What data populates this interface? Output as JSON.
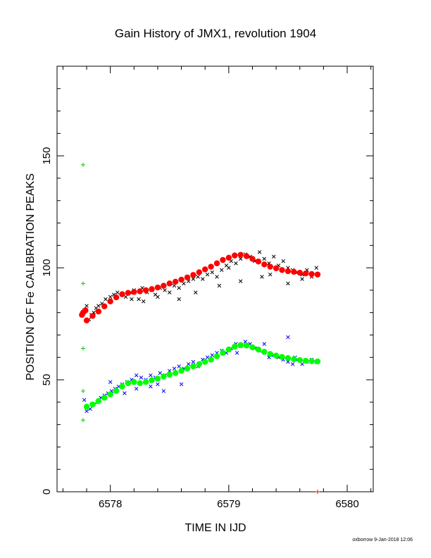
{
  "chart_data": {
    "type": "scatter",
    "title": "Gain History of JMX1, revolution 1904",
    "xlabel": "TIME IN IJD",
    "ylabel": "POSITION OF Fe CALIBRATION PEAKS",
    "xlim": [
      6577.55,
      6580.22
    ],
    "ylim": [
      0,
      190
    ],
    "xticks": [
      6578,
      6579,
      6580
    ],
    "yticks": [
      0,
      50,
      100,
      150
    ],
    "grid": false,
    "legend": "none",
    "footer": "oxborrow  9-Jan-2018 12:06",
    "colors": {
      "black_points": "#000000",
      "red_fit": "#ff0000",
      "blue_points": "#0000ff",
      "green_fit": "#00ff00",
      "green_cross": "#00cc00"
    },
    "series": [
      {
        "marker": "x",
        "color": "#000000",
        "x": [
          6577.78,
          6577.8,
          6577.82,
          6577.84,
          6577.86,
          6577.88,
          6577.9,
          6577.93,
          6577.96,
          6578.0,
          6578.03,
          6578.06,
          6578.1,
          6578.13,
          6578.17,
          6578.2,
          6578.24,
          6578.27,
          6578.31,
          6578.35,
          6578.38,
          6578.42,
          6578.46,
          6578.5,
          6578.54,
          6578.58,
          6578.62,
          6578.66,
          6578.7,
          6578.74,
          6578.78,
          6578.82,
          6578.86,
          6578.9,
          6578.94,
          6578.98,
          6579.02,
          6579.06,
          6579.1,
          6579.14,
          6579.18,
          6579.22,
          6579.26,
          6579.3,
          6579.34,
          6579.38,
          6579.42,
          6579.46,
          6579.5,
          6579.54,
          6579.58,
          6579.62,
          6579.66,
          6579.7,
          6579.74,
          6578.18,
          6578.4,
          6578.58,
          6578.92,
          6579.1,
          6579.28,
          6579.5,
          6579.62,
          6578.28,
          6578.72,
          6579.0,
          6579.35
        ],
        "y": [
          81,
          83,
          77,
          79,
          80,
          82,
          83,
          84,
          86,
          87,
          88,
          89,
          88,
          87,
          89,
          90,
          86,
          91,
          89,
          90,
          88,
          91,
          90,
          89,
          92,
          91,
          93,
          94,
          95,
          96,
          95,
          97,
          98,
          96,
          99,
          101,
          103,
          102,
          104,
          106,
          105,
          103,
          107,
          104,
          102,
          105,
          101,
          103,
          100,
          99,
          98,
          97,
          99,
          96,
          100,
          86,
          87,
          86,
          92,
          94,
          96,
          93,
          95,
          85,
          89,
          100,
          97
        ]
      },
      {
        "marker": "x",
        "color": "#0000ff",
        "x": [
          6577.78,
          6577.8,
          6577.83,
          6577.86,
          6577.89,
          6577.92,
          6577.95,
          6577.98,
          6578.01,
          6578.04,
          6578.07,
          6578.1,
          6578.14,
          6578.18,
          6578.22,
          6578.26,
          6578.3,
          6578.34,
          6578.38,
          6578.42,
          6578.46,
          6578.5,
          6578.54,
          6578.58,
          6578.62,
          6578.66,
          6578.7,
          6578.74,
          6578.78,
          6578.82,
          6578.86,
          6578.9,
          6578.94,
          6578.98,
          6579.02,
          6579.06,
          6579.1,
          6579.14,
          6579.18,
          6579.22,
          6579.26,
          6579.3,
          6579.34,
          6579.38,
          6579.42,
          6579.46,
          6579.5,
          6579.54,
          6579.58,
          6579.62,
          6579.66,
          6579.7,
          6579.74,
          6578.0,
          6578.12,
          6578.34,
          6578.45,
          6578.6,
          6579.07,
          6579.3,
          6579.5,
          6579.56,
          6578.22,
          6578.4
        ],
        "y": [
          41,
          36,
          37,
          39,
          40,
          42,
          43,
          44,
          45,
          46,
          47,
          48,
          49,
          50,
          52,
          51,
          50,
          52,
          51,
          53,
          52,
          54,
          55,
          56,
          55,
          57,
          58,
          56,
          59,
          60,
          61,
          62,
          63,
          62,
          64,
          66,
          65,
          67,
          66,
          64,
          63,
          62,
          60,
          61,
          60,
          59,
          58,
          57,
          59,
          57,
          58,
          59,
          58,
          49,
          44,
          47,
          45,
          48,
          62,
          66,
          69,
          60,
          46,
          48
        ]
      },
      {
        "marker": "dot",
        "color": "#ff0000",
        "x": [
          6577.76,
          6577.77,
          6577.79
        ],
        "y": [
          79,
          80,
          81
        ]
      },
      {
        "marker": "dot",
        "color": "#ff0000",
        "x": [
          6577.8,
          6577.85,
          6577.9,
          6577.95,
          6578.0,
          6578.05,
          6578.1,
          6578.15,
          6578.2,
          6578.25,
          6578.3,
          6578.35,
          6578.4,
          6578.45,
          6578.5,
          6578.55,
          6578.6,
          6578.65,
          6578.7,
          6578.75,
          6578.8,
          6578.85,
          6578.9,
          6578.95,
          6579.0,
          6579.05,
          6579.1,
          6579.15,
          6579.2,
          6579.25,
          6579.3,
          6579.35,
          6579.4,
          6579.45,
          6579.5,
          6579.55,
          6579.6,
          6579.65,
          6579.7,
          6579.75
        ],
        "y": [
          76.5,
          78.5,
          80.5,
          82.8,
          85,
          86.8,
          88.2,
          88.8,
          89.2,
          89.5,
          90,
          90.5,
          91.2,
          92,
          93,
          93.8,
          94.7,
          95.7,
          96.8,
          98,
          99.3,
          100.5,
          102,
          103.5,
          104.5,
          105.5,
          105.8,
          105.2,
          104,
          102.8,
          101.5,
          100.5,
          99.8,
          99,
          98.5,
          98.2,
          97.8,
          97.5,
          97.2,
          97
        ]
      },
      {
        "marker": "dot",
        "color": "#00ff00",
        "x": [
          6577.8,
          6577.85,
          6577.9,
          6577.95,
          6578.0,
          6578.05,
          6578.1,
          6578.15,
          6578.2,
          6578.25,
          6578.3,
          6578.35,
          6578.4,
          6578.45,
          6578.5,
          6578.55,
          6578.6,
          6578.65,
          6578.7,
          6578.75,
          6578.8,
          6578.85,
          6578.9,
          6578.95,
          6579.0,
          6579.05,
          6579.1,
          6579.15,
          6579.2,
          6579.25,
          6579.3,
          6579.35,
          6579.4,
          6579.45,
          6579.5,
          6579.55,
          6579.6,
          6579.65,
          6579.7,
          6579.75
        ],
        "y": [
          38,
          39,
          40.5,
          42,
          43.5,
          45,
          47,
          48.5,
          49,
          48.5,
          49,
          49.8,
          50.5,
          51.5,
          52.3,
          53,
          54,
          55,
          56,
          57,
          58,
          59,
          60.5,
          62,
          63.5,
          64.8,
          65.5,
          65.3,
          64.5,
          63.5,
          62.5,
          61.5,
          60.8,
          60.2,
          59.7,
          59.2,
          58.8,
          58.5,
          58.3,
          58.2
        ]
      },
      {
        "marker": "plus",
        "color": "#00cc00",
        "x": [
          6577.77,
          6577.77,
          6577.77,
          6577.77,
          6577.77
        ],
        "y": [
          146,
          93,
          64,
          45,
          32
        ]
      },
      {
        "marker": "plus",
        "color": "#ff0000",
        "x": [
          6579.75
        ],
        "y": [
          0
        ]
      }
    ]
  }
}
